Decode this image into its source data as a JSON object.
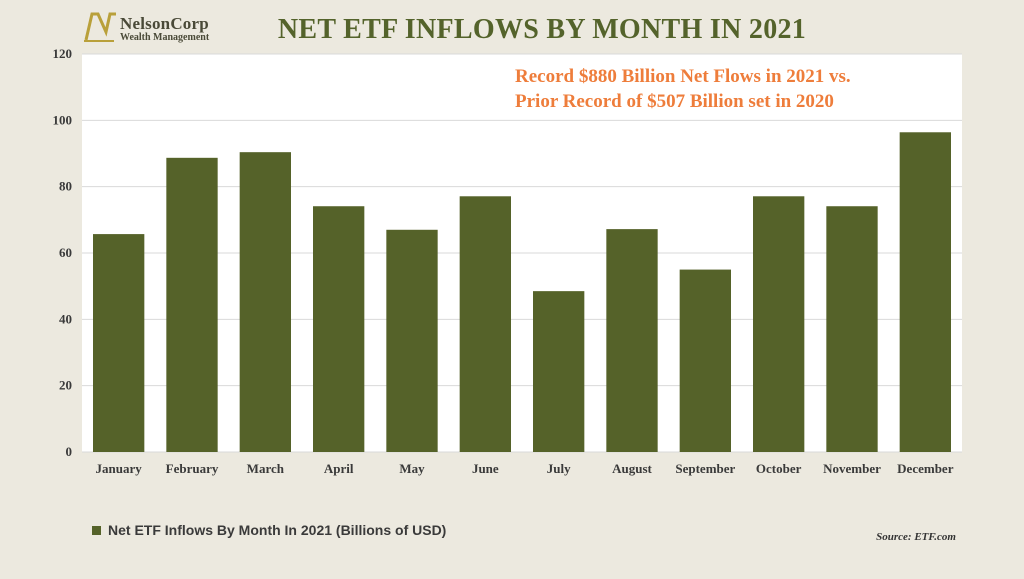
{
  "logo": {
    "name": "NelsonCorp",
    "subtitle": "Wealth Management"
  },
  "source": {
    "label": "Source",
    "value": "ETF.com"
  },
  "colors": {
    "bar": "#556229",
    "title": "#54632b",
    "annotation": "#ee7d3b",
    "background": "#ece9df",
    "plot": "#ffffff",
    "grid": "#d9d9d9"
  },
  "chart_data": {
    "type": "bar",
    "title": "NET ETF INFLOWS BY MONTH IN 2021",
    "categories": [
      "January",
      "February",
      "March",
      "April",
      "May",
      "June",
      "July",
      "August",
      "September",
      "October",
      "November",
      "December"
    ],
    "series": [
      {
        "name": "Net ETF Inflows By Month In 2021 (Billions of USD)",
        "values": [
          65.7,
          88.7,
          90.4,
          74.1,
          67.0,
          77.1,
          48.5,
          67.2,
          55.0,
          77.1,
          74.1,
          96.4
        ]
      }
    ],
    "xlabel": "",
    "ylabel": "",
    "ylim": [
      0,
      120
    ],
    "yticks": [
      0,
      20,
      40,
      60,
      80,
      100,
      120
    ],
    "grid": true,
    "legend": "bottom-left",
    "annotation": {
      "line1": "Record $880 Billion Net Flows in 2021 vs.",
      "line2": "Prior Record of $507 Billion set in 2020"
    }
  }
}
